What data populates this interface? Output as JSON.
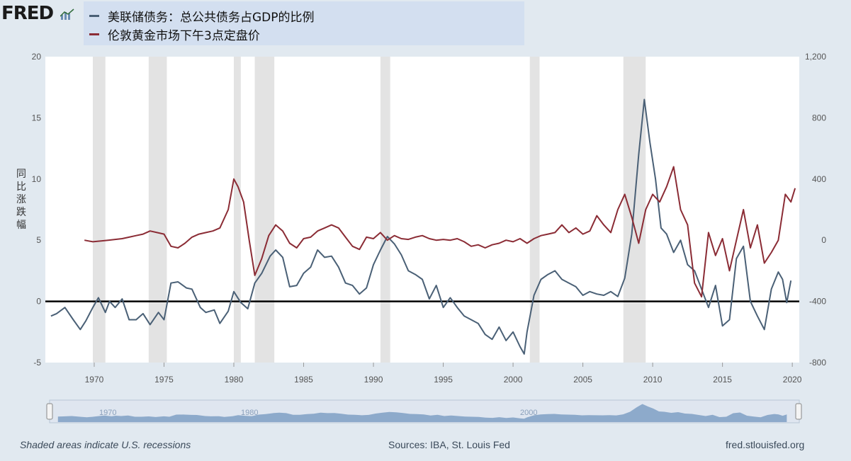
{
  "header": {
    "logo_text": "FRED",
    "legend": [
      {
        "label": "美联储债务：总公共债务占GDP的比例",
        "color": "#4a6076"
      },
      {
        "label": "伦敦黄金市场下午3点定盘价",
        "color": "#8b2c35"
      }
    ]
  },
  "footer": {
    "left": "Shaded areas indicate U.S. recessions",
    "center": "Sources: IBA, St. Louis Fed",
    "right": "fred.stlouisfed.org"
  },
  "navigator_labels": [
    "1970",
    "1980",
    "2000"
  ],
  "chart_data": {
    "type": "line",
    "ylabel": "同比涨跌幅",
    "x_range": [
      1966.5,
      2020.5
    ],
    "x_ticks": [
      "1970",
      "1975",
      "1980",
      "1985",
      "1990",
      "1995",
      "2000",
      "2005",
      "2010",
      "2015",
      "2020"
    ],
    "y_left_range": [
      -5,
      20
    ],
    "y_left_ticks": [
      "20",
      "15",
      "10",
      "5",
      "0",
      "-5"
    ],
    "y_right_range": [
      -800,
      1200
    ],
    "y_right_ticks": [
      "1,200",
      "800",
      "400",
      "0",
      "-400",
      "-800"
    ],
    "grid": false,
    "recessions": [
      [
        1969.9,
        1970.8
      ],
      [
        1973.9,
        1975.2
      ],
      [
        1980.0,
        1980.5
      ],
      [
        1981.5,
        1982.9
      ],
      [
        1990.5,
        1991.2
      ],
      [
        2001.2,
        2001.9
      ],
      [
        2007.9,
        2009.5
      ]
    ],
    "series": [
      {
        "name": "美联储债务：总公共债务占GDP的比例",
        "axis": "left",
        "color": "#4a6076",
        "x": [
          1966.9,
          1967.3,
          1967.9,
          1968.5,
          1969.0,
          1969.4,
          1969.9,
          1970.3,
          1970.8,
          1971.1,
          1971.5,
          1972.0,
          1972.5,
          1973.0,
          1973.5,
          1974.0,
          1974.6,
          1975.0,
          1975.5,
          1976.0,
          1976.6,
          1977.0,
          1977.6,
          1978.0,
          1978.6,
          1979.0,
          1979.6,
          1980.0,
          1980.5,
          1981.0,
          1981.5,
          1982.0,
          1982.6,
          1983.0,
          1983.5,
          1984.0,
          1984.5,
          1985.0,
          1985.5,
          1986.0,
          1986.5,
          1987.0,
          1987.5,
          1988.0,
          1988.5,
          1989.0,
          1989.5,
          1990.0,
          1990.5,
          1991.0,
          1991.5,
          1992.0,
          1992.5,
          1993.0,
          1993.5,
          1994.0,
          1994.5,
          1995.0,
          1995.5,
          1996.0,
          1996.5,
          1997.0,
          1997.5,
          1998.0,
          1998.5,
          1999.0,
          1999.5,
          2000.0,
          2000.5,
          2000.8,
          2001.0,
          2001.5,
          2002.0,
          2002.5,
          2003.0,
          2003.5,
          2004.0,
          2004.5,
          2005.0,
          2005.5,
          2006.0,
          2006.5,
          2007.0,
          2007.5,
          2008.0,
          2008.5,
          2009.0,
          2009.4,
          2009.8,
          2010.2,
          2010.6,
          2011.0,
          2011.5,
          2012.0,
          2012.5,
          2013.0,
          2013.5,
          2014.0,
          2014.5,
          2015.0,
          2015.5,
          2016.0,
          2016.5,
          2017.0,
          2017.5,
          2018.0,
          2018.5,
          2019.0,
          2019.3,
          2019.6,
          2019.9
        ],
        "y": [
          -1.2,
          -1.0,
          -0.5,
          -1.5,
          -2.3,
          -1.6,
          -0.5,
          0.3,
          -0.9,
          0.0,
          -0.5,
          0.2,
          -1.5,
          -1.5,
          -1.0,
          -1.9,
          -0.9,
          -1.5,
          1.5,
          1.6,
          1.1,
          1.0,
          -0.5,
          -0.9,
          -0.7,
          -1.8,
          -0.8,
          0.8,
          -0.1,
          -0.6,
          1.5,
          2.3,
          3.7,
          4.2,
          3.6,
          1.2,
          1.3,
          2.3,
          2.8,
          4.2,
          3.6,
          3.7,
          2.8,
          1.5,
          1.3,
          0.6,
          1.1,
          3.0,
          4.2,
          5.3,
          4.7,
          3.8,
          2.5,
          2.2,
          1.8,
          0.2,
          1.3,
          -0.5,
          0.3,
          -0.5,
          -1.2,
          -1.5,
          -1.8,
          -2.7,
          -3.1,
          -2.1,
          -3.2,
          -2.5,
          -3.7,
          -4.3,
          -2.5,
          0.5,
          1.8,
          2.2,
          2.5,
          1.8,
          1.5,
          1.2,
          0.5,
          0.8,
          0.6,
          0.5,
          0.8,
          0.4,
          1.9,
          5.5,
          12.0,
          16.5,
          13.0,
          10.0,
          6.0,
          5.5,
          4.0,
          5.0,
          3.0,
          2.5,
          1.0,
          -0.5,
          1.3,
          -2.0,
          -1.5,
          3.5,
          4.5,
          0.0,
          -1.2,
          -2.3,
          1.0,
          2.4,
          1.8,
          -0.1,
          1.7
        ]
      },
      {
        "name": "伦敦黄金市场下午3点定盘价",
        "axis": "right",
        "color": "#8b2c35",
        "x": [
          1969.3,
          1969.9,
          1970.5,
          1971.0,
          1971.5,
          1972.0,
          1972.5,
          1973.0,
          1973.5,
          1974.0,
          1974.5,
          1975.0,
          1975.5,
          1976.0,
          1976.5,
          1977.0,
          1977.5,
          1978.0,
          1978.5,
          1979.0,
          1979.6,
          1980.0,
          1980.3,
          1980.7,
          1981.1,
          1981.5,
          1982.0,
          1982.5,
          1983.0,
          1983.5,
          1984.0,
          1984.5,
          1985.0,
          1985.5,
          1986.0,
          1986.5,
          1987.0,
          1987.5,
          1988.0,
          1988.5,
          1989.0,
          1989.5,
          1990.0,
          1990.5,
          1991.0,
          1991.5,
          1992.0,
          1992.5,
          1993.0,
          1993.5,
          1994.0,
          1994.5,
          1995.0,
          1995.5,
          1996.0,
          1996.5,
          1997.0,
          1997.5,
          1998.0,
          1998.5,
          1999.0,
          1999.5,
          2000.0,
          2000.5,
          2001.0,
          2001.5,
          2002.0,
          2002.5,
          2003.0,
          2003.5,
          2004.0,
          2004.5,
          2005.0,
          2005.5,
          2006.0,
          2006.5,
          2007.0,
          2007.5,
          2008.0,
          2008.5,
          2009.0,
          2009.5,
          2010.0,
          2010.5,
          2011.0,
          2011.5,
          2012.0,
          2012.5,
          2013.0,
          2013.5,
          2014.0,
          2014.5,
          2015.0,
          2015.5,
          2016.0,
          2016.5,
          2017.0,
          2017.5,
          2018.0,
          2018.5,
          2019.0,
          2019.5,
          2019.9,
          2020.2
        ],
        "y": [
          0,
          -10,
          -5,
          0,
          5,
          10,
          20,
          30,
          40,
          60,
          50,
          40,
          -40,
          -50,
          -20,
          20,
          40,
          50,
          60,
          80,
          200,
          400,
          350,
          250,
          0,
          -230,
          -120,
          30,
          100,
          60,
          -20,
          -50,
          10,
          20,
          60,
          80,
          100,
          80,
          20,
          -40,
          -60,
          20,
          10,
          50,
          0,
          30,
          10,
          5,
          20,
          30,
          10,
          0,
          5,
          0,
          10,
          -10,
          -40,
          -30,
          -50,
          -30,
          -20,
          0,
          -10,
          10,
          -20,
          10,
          30,
          40,
          50,
          100,
          50,
          80,
          40,
          60,
          160,
          100,
          50,
          200,
          300,
          150,
          -20,
          200,
          300,
          250,
          350,
          480,
          200,
          100,
          -280,
          -370,
          50,
          -100,
          10,
          -200,
          0,
          200,
          -50,
          100,
          -150,
          -80,
          0,
          300,
          250,
          340
        ]
      }
    ]
  }
}
